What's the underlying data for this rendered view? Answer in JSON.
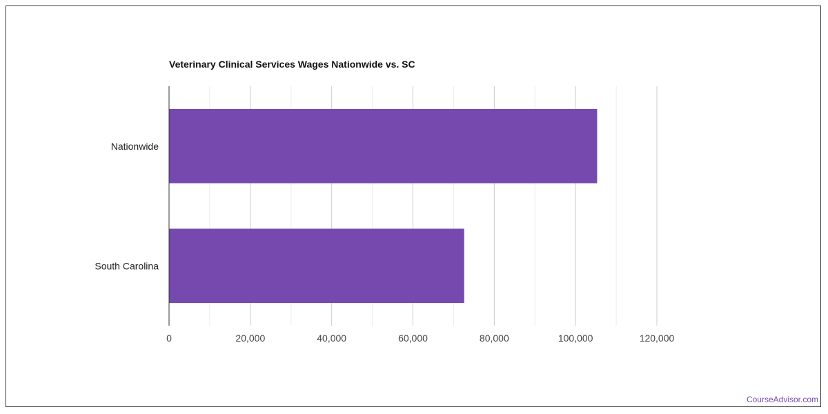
{
  "chart_data": {
    "type": "bar",
    "orientation": "horizontal",
    "title": "Veterinary Clinical Services Wages Nationwide vs. SC",
    "categories": [
      "Nationwide",
      "South Carolina"
    ],
    "values": [
      105300,
      72600
    ],
    "xlim": [
      0,
      120000
    ],
    "x_ticks": [
      "0",
      "20,000",
      "40,000",
      "60,000",
      "80,000",
      "100,000",
      "120,000"
    ],
    "xlabel": "",
    "ylabel": "",
    "grid": true,
    "legend": "none",
    "bar_color": "#7549ae"
  },
  "watermark": "CourseAdvisor.com"
}
